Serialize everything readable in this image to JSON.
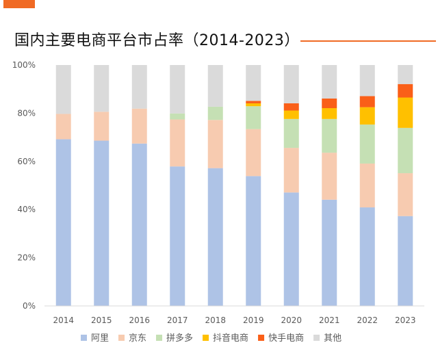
{
  "title": "国内主要电商平台市占率（2014-2023）",
  "colors": {
    "accent": "#f06a24",
    "axis": "#d9d9d9"
  },
  "chart_data": {
    "type": "bar",
    "stacked": true,
    "title": "国内主要电商平台市占率（2014-2023）",
    "xlabel": "",
    "ylabel": "",
    "ylim": [
      0,
      100
    ],
    "y_ticks": [
      "0%",
      "20%",
      "40%",
      "60%",
      "80%",
      "100%"
    ],
    "grid": false,
    "legend_position": "bottom",
    "categories": [
      "2014",
      "2015",
      "2016",
      "2017",
      "2018",
      "2019",
      "2020",
      "2021",
      "2022",
      "2023"
    ],
    "series": [
      {
        "name": "阿里",
        "color": "#aec3e6",
        "values": [
          69.2,
          68.6,
          67.4,
          57.9,
          57.2,
          53.9,
          47.1,
          44.1,
          40.9,
          37.3
        ]
      },
      {
        "name": "京东",
        "color": "#f7cbb0",
        "values": [
          10.5,
          12.0,
          14.5,
          19.5,
          20.0,
          19.5,
          18.5,
          19.5,
          18.2,
          17.8
        ]
      },
      {
        "name": "拼多多",
        "color": "#c5e0b4",
        "values": [
          0.0,
          0.0,
          0.0,
          2.5,
          5.5,
          9.5,
          12.0,
          14.0,
          16.2,
          18.8
        ]
      },
      {
        "name": "抖音电商",
        "color": "#ffc000",
        "values": [
          0.0,
          0.0,
          0.0,
          0.0,
          0.0,
          1.2,
          3.5,
          4.5,
          7.2,
          12.6
        ]
      },
      {
        "name": "快手电商",
        "color": "#fa5f18",
        "values": [
          0.0,
          0.0,
          0.0,
          0.0,
          0.0,
          1.0,
          3.0,
          4.0,
          4.6,
          5.6
        ]
      },
      {
        "name": "其他",
        "color": "#dadada",
        "values": [
          20.3,
          19.4,
          18.1,
          20.1,
          17.3,
          14.9,
          15.9,
          13.9,
          12.9,
          7.9
        ]
      }
    ]
  }
}
